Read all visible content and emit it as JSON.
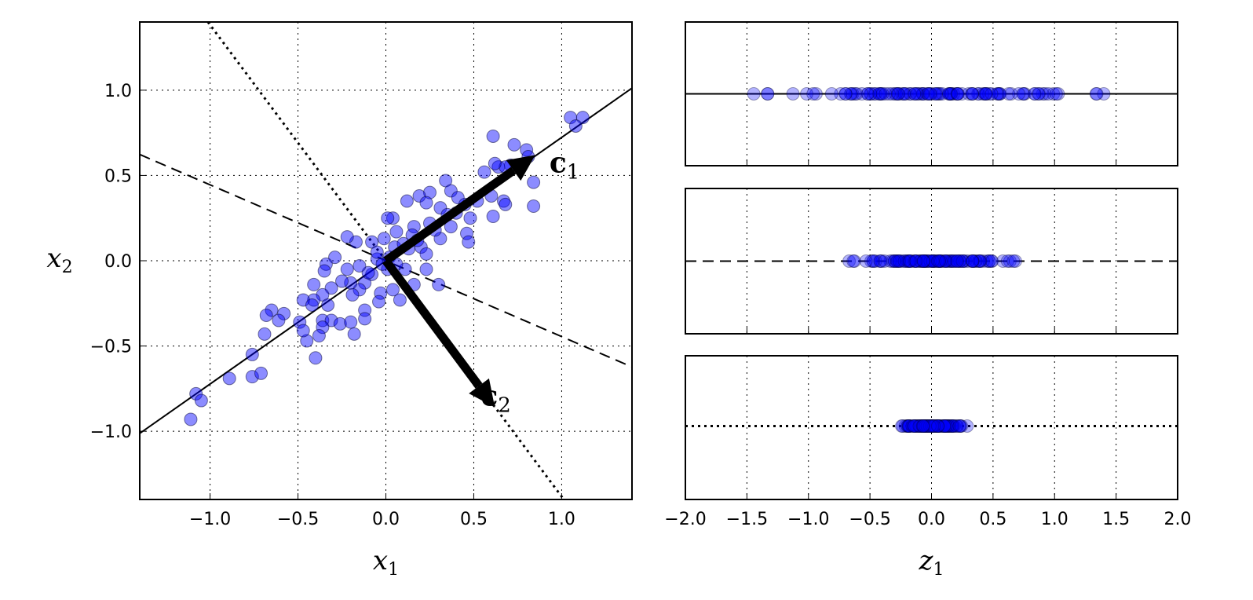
{
  "chart_data": [
    {
      "type": "scatter",
      "title": "",
      "xlabel": "x",
      "xlabel_sub": "1",
      "ylabel": "x",
      "ylabel_sub": "2",
      "xlim": [
        -1.4,
        1.4
      ],
      "ylim": [
        -1.4,
        1.4
      ],
      "xticks": [
        -1.0,
        -0.5,
        0.0,
        0.5,
        1.0
      ],
      "yticks": [
        -1.0,
        -0.5,
        0.0,
        0.5,
        1.0
      ],
      "xtick_labels": [
        "−1.0",
        "−0.5",
        "0.0",
        "0.5",
        "1.0"
      ],
      "ytick_labels": [
        "−1.0",
        "−0.5",
        "0.0",
        "0.5",
        "1.0"
      ],
      "grid": true,
      "marker_color": "#0000ff",
      "points": [
        [
          0.61,
          0.73
        ],
        [
          0.73,
          0.68
        ],
        [
          0.8,
          0.65
        ],
        [
          0.81,
          0.61
        ],
        [
          0.71,
          0.56
        ],
        [
          0.64,
          0.55
        ],
        [
          0.56,
          0.52
        ],
        [
          0.84,
          0.46
        ],
        [
          0.84,
          0.32
        ],
        [
          0.61,
          0.26
        ],
        [
          0.67,
          0.35
        ],
        [
          0.68,
          0.33
        ],
        [
          0.6,
          0.38
        ],
        [
          0.34,
          0.47
        ],
        [
          0.37,
          0.41
        ],
        [
          0.25,
          0.4
        ],
        [
          0.19,
          0.38
        ],
        [
          0.12,
          0.35
        ],
        [
          0.23,
          0.34
        ],
        [
          0.31,
          0.31
        ],
        [
          0.41,
          0.37
        ],
        [
          0.45,
          0.33
        ],
        [
          0.48,
          0.25
        ],
        [
          0.46,
          0.16
        ],
        [
          0.47,
          0.11
        ],
        [
          0.37,
          0.2
        ],
        [
          0.31,
          0.13
        ],
        [
          0.25,
          0.22
        ],
        [
          0.16,
          0.2
        ],
        [
          0.04,
          0.25
        ],
        [
          0.01,
          0.25
        ],
        [
          0.06,
          0.17
        ],
        [
          -0.01,
          0.13
        ],
        [
          -0.08,
          0.11
        ],
        [
          -0.17,
          0.11
        ],
        [
          -0.22,
          0.14
        ],
        [
          0.13,
          0.07
        ],
        [
          0.2,
          0.08
        ],
        [
          0.23,
          0.04
        ],
        [
          0.23,
          -0.05
        ],
        [
          0.3,
          -0.14
        ],
        [
          0.11,
          -0.05
        ],
        [
          0.16,
          -0.14
        ],
        [
          0.08,
          -0.23
        ],
        [
          0.04,
          -0.17
        ],
        [
          -0.03,
          -0.19
        ],
        [
          -0.04,
          -0.24
        ],
        [
          0.01,
          -0.05
        ],
        [
          -0.05,
          0.01
        ],
        [
          -0.08,
          -0.08
        ],
        [
          -0.12,
          -0.13
        ],
        [
          -0.15,
          -0.17
        ],
        [
          -0.12,
          -0.29
        ],
        [
          -0.12,
          -0.34
        ],
        [
          -0.19,
          -0.2
        ],
        [
          -0.2,
          -0.13
        ],
        [
          -0.22,
          -0.05
        ],
        [
          -0.29,
          0.02
        ],
        [
          -0.34,
          -0.02
        ],
        [
          -0.35,
          -0.06
        ],
        [
          -0.31,
          -0.16
        ],
        [
          -0.36,
          -0.2
        ],
        [
          -0.41,
          -0.14
        ],
        [
          -0.41,
          -0.23
        ],
        [
          -0.47,
          -0.23
        ],
        [
          -0.42,
          -0.26
        ],
        [
          -0.33,
          -0.26
        ],
        [
          -0.36,
          -0.35
        ],
        [
          -0.31,
          -0.35
        ],
        [
          -0.26,
          -0.37
        ],
        [
          -0.2,
          -0.36
        ],
        [
          -0.18,
          -0.43
        ],
        [
          -0.36,
          -0.39
        ],
        [
          -0.38,
          -0.44
        ],
        [
          -0.45,
          -0.47
        ],
        [
          -0.49,
          -0.36
        ],
        [
          -0.47,
          -0.41
        ],
        [
          -0.4,
          -0.57
        ],
        [
          -0.58,
          -0.31
        ],
        [
          -0.65,
          -0.29
        ],
        [
          -0.68,
          -0.32
        ],
        [
          -0.61,
          -0.35
        ],
        [
          -0.69,
          -0.43
        ],
        [
          -0.76,
          -0.55
        ],
        [
          -0.76,
          -0.68
        ],
        [
          -0.71,
          -0.66
        ],
        [
          -0.89,
          -0.69
        ],
        [
          -1.08,
          -0.78
        ],
        [
          -1.05,
          -0.82
        ],
        [
          -1.11,
          -0.93
        ],
        [
          1.05,
          0.84
        ],
        [
          1.12,
          0.84
        ],
        [
          1.08,
          0.79
        ],
        [
          0.68,
          0.55
        ],
        [
          0.62,
          0.57
        ],
        [
          0.05,
          0.08
        ],
        [
          0.02,
          0.02
        ],
        [
          -0.02,
          -0.02
        ],
        [
          0.1,
          0.1
        ],
        [
          0.15,
          0.15
        ],
        [
          -0.1,
          -0.07
        ],
        [
          0.18,
          0.12
        ],
        [
          -0.25,
          -0.12
        ],
        [
          0.28,
          0.18
        ],
        [
          0.4,
          0.28
        ],
        [
          0.52,
          0.35
        ],
        [
          0.35,
          0.27
        ],
        [
          -0.15,
          -0.03
        ],
        [
          0.06,
          -0.02
        ],
        [
          -0.05,
          0.05
        ]
      ],
      "lines": [
        {
          "name": "solid",
          "style": "solid",
          "slope": 0.723
        },
        {
          "name": "dashed",
          "style": "dashed",
          "slope": -0.445
        },
        {
          "name": "dotted",
          "style": "dotted",
          "slope": -1.383
        }
      ],
      "vectors": [
        {
          "label": "c",
          "sub": "1",
          "from": [
            0,
            0
          ],
          "to": [
            0.85,
            0.62
          ]
        },
        {
          "label": "c",
          "sub": "2",
          "from": [
            0,
            0
          ],
          "to": [
            0.62,
            -0.86
          ]
        }
      ]
    },
    {
      "type": "scatter",
      "title": "",
      "description_panels": [
        "projection onto solid line",
        "projection onto dashed line",
        "projection onto dotted line"
      ],
      "xlabel": "z",
      "xlabel_sub": "1",
      "xlim": [
        -2.0,
        2.0
      ],
      "xticks": [
        -2.0,
        -1.5,
        -1.0,
        -0.5,
        0.0,
        0.5,
        1.0,
        1.5,
        2.0
      ],
      "xtick_labels": [
        "−2.0",
        "−1.5",
        "−1.0",
        "−0.5",
        "0.0",
        "0.5",
        "1.0",
        "1.5",
        "2.0"
      ],
      "grid": true,
      "panels": [
        {
          "line_style": "solid",
          "projects_line": "solid"
        },
        {
          "line_style": "dashed",
          "projects_line": "dashed"
        },
        {
          "line_style": "dotted",
          "projects_line": "dotted"
        }
      ]
    }
  ]
}
